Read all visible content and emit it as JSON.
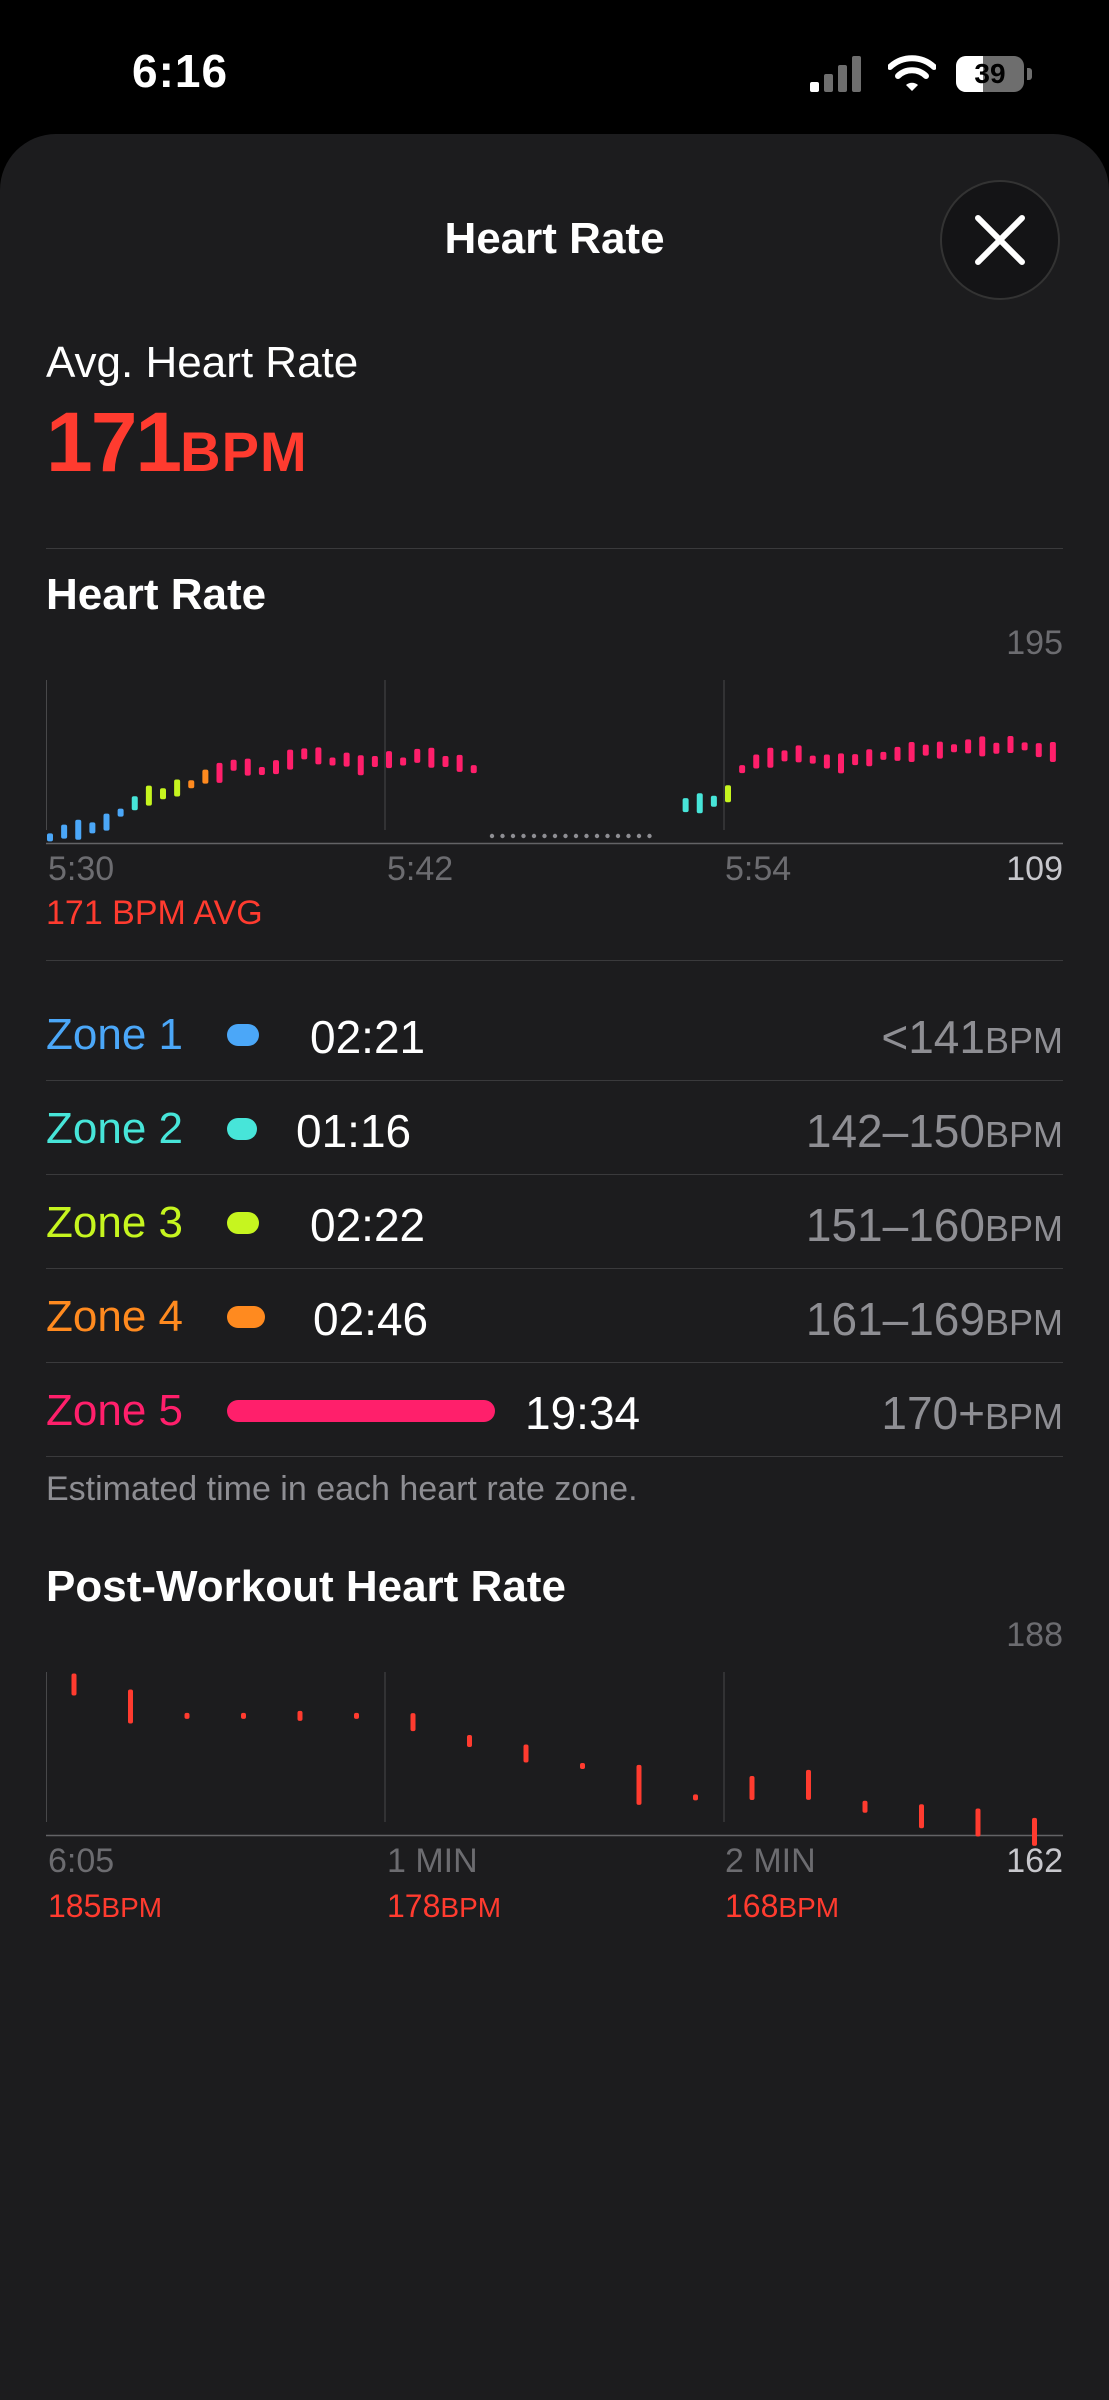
{
  "status_bar": {
    "time": "6:16",
    "battery": "39",
    "battery_level": 0.39
  },
  "sheet": {
    "title": "Heart Rate"
  },
  "summary": {
    "avg_label": "Avg. Heart Rate",
    "avg_value": "171",
    "avg_unit": "BPM"
  },
  "hr_section": {
    "title": "Heart Rate",
    "y_max_label": "195",
    "y_min_label": "109",
    "x_labels": [
      "5:30",
      "5:42",
      "5:54"
    ],
    "avg_caption": "171 BPM AVG"
  },
  "zones": {
    "items": [
      {
        "name": "Zone 1",
        "time": "02:21",
        "range": "<141",
        "unit": "BPM",
        "color": "#4ba7f8",
        "minutes": 2.35
      },
      {
        "name": "Zone 2",
        "time": "01:16",
        "range": "142–150",
        "unit": "BPM",
        "color": "#47e5d9",
        "minutes": 1.27
      },
      {
        "name": "Zone 3",
        "time": "02:22",
        "range": "151–160",
        "unit": "BPM",
        "color": "#c6f51f",
        "minutes": 2.37
      },
      {
        "name": "Zone 4",
        "time": "02:46",
        "range": "161–169",
        "unit": "BPM",
        "color": "#ff8a1f",
        "minutes": 2.77
      },
      {
        "name": "Zone 5",
        "time": "19:34",
        "range": "170+",
        "unit": "BPM",
        "color": "#ff1f6b",
        "minutes": 19.57
      }
    ],
    "footnote": "Estimated time in each heart rate zone."
  },
  "post_section": {
    "title": "Post-Workout Heart Rate",
    "y_max_label": "188",
    "y_min_label": "162",
    "x_labels": [
      "6:05",
      "1 MIN",
      "2 MIN"
    ],
    "bpm_labels": [
      {
        "value": "185",
        "unit": "BPM"
      },
      {
        "value": "178",
        "unit": "BPM"
      },
      {
        "value": "168",
        "unit": "BPM"
      }
    ]
  },
  "chart_data": [
    {
      "type": "scatter",
      "title": "Heart Rate",
      "x_labels": [
        "5:30",
        "5:42",
        "5:54"
      ],
      "ylim": [
        109,
        195
      ],
      "series": [
        {
          "x": [
            0,
            0.5,
            1,
            1.5,
            2,
            2.5,
            3,
            3.5,
            4,
            4.5,
            5,
            5.5,
            6,
            6.5,
            7,
            7.5,
            8,
            8.5,
            9,
            9.5,
            10,
            10.5,
            11,
            11.5,
            12,
            12.5,
            13,
            13.5,
            14,
            14.5,
            15,
            22.5,
            23,
            23.5,
            24,
            24.5,
            25,
            25.5,
            26,
            26.5,
            27,
            27.5,
            28,
            28.5,
            29,
            29.5,
            30,
            30.5,
            31,
            31.5,
            32,
            32.5,
            33,
            33.5,
            34,
            34.5,
            35,
            35.5,
            36
          ],
          "y": [
            112,
            115,
            116,
            117,
            120,
            125,
            130,
            134,
            135,
            138,
            140,
            144,
            146,
            150,
            149,
            147,
            149,
            153,
            156,
            155,
            152,
            153,
            150,
            152,
            153,
            152,
            155,
            154,
            152,
            151,
            148,
            129,
            130,
            131,
            135,
            148,
            152,
            154,
            155,
            156,
            153,
            152,
            151,
            153,
            154,
            155,
            156,
            157,
            158,
            158,
            159,
            160,
            160,
            159,
            161,
            160,
            158,
            157,
            156
          ]
        }
      ]
    },
    {
      "type": "scatter",
      "title": "Post-Workout Heart Rate",
      "x_labels": [
        "6:05",
        "1 MIN",
        "2 MIN"
      ],
      "ylim": [
        162,
        188
      ],
      "series": [
        {
          "x": [
            0,
            0.3333,
            0.6667,
            1,
            1.3333,
            1.6667,
            2,
            2.3333,
            2.6667,
            3,
            3.3333,
            3.6667,
            4,
            4.3333,
            4.6667,
            5,
            5.3333,
            5.6667
          ],
          "y": [
            186,
            182.5,
            181,
            181,
            181,
            181,
            180,
            177,
            175,
            173,
            170,
            168,
            169.5,
            170,
            166.5,
            165,
            164,
            162.5
          ]
        }
      ]
    }
  ]
}
